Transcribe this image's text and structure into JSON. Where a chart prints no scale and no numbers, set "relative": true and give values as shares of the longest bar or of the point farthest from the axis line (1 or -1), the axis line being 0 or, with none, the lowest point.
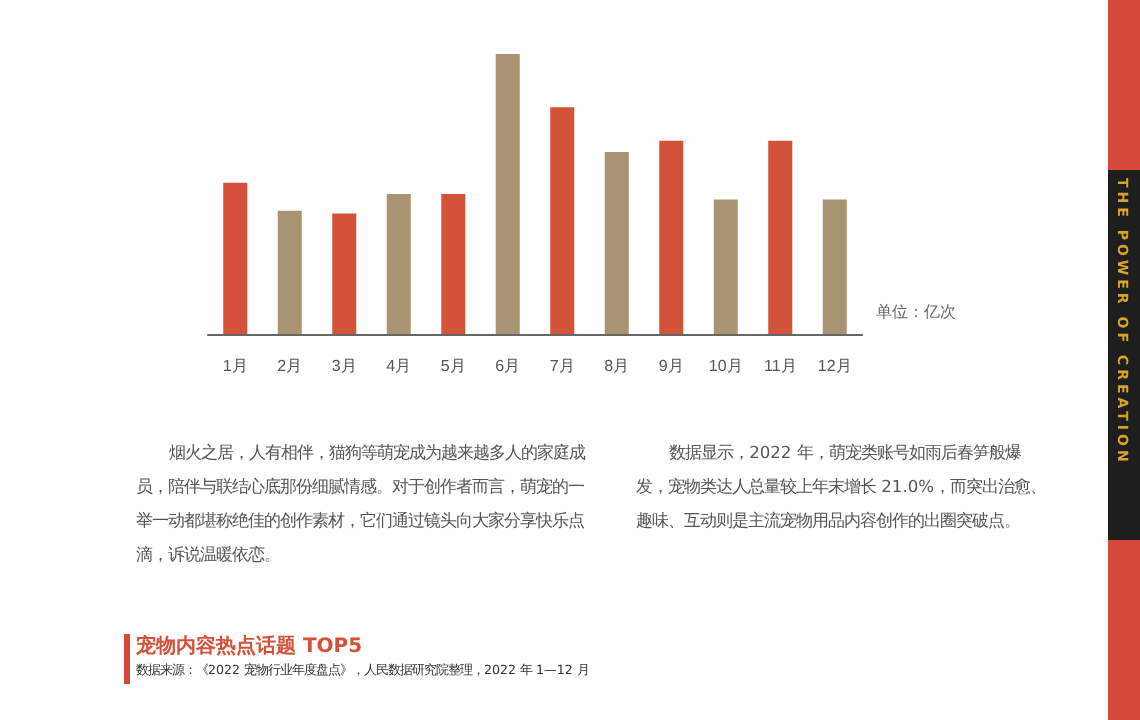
{
  "chart_data": {
    "type": "bar",
    "relative": true,
    "ylabel": "单位：亿次",
    "categories": [
      "1月",
      "2月",
      "3月",
      "4月",
      "5月",
      "6月",
      "7月",
      "8月",
      "9月",
      "10月",
      "11月",
      "12月"
    ],
    "values": [
      0.54,
      0.44,
      0.43,
      0.5,
      0.5,
      1,
      0.81,
      0.65,
      0.69,
      0.48,
      0.69,
      0.48
    ],
    "colors": [
      "#d4523a",
      "#a89373",
      "#d4523a",
      "#a89373",
      "#d4523a",
      "#a89373",
      "#d4523a",
      "#a89373",
      "#d4523a",
      "#a89373",
      "#d4523a",
      "#a89373"
    ],
    "grid": false,
    "annotations": [
      "烟火之居，人有相伴，猫狗等萌宠成为越来越多人的家庭成员，陪伴与联结心底那份细腻情感。对于创作者而言，萌宠的一举一动都堪称绝佳的创作素材，它们通过镜头向大家分享快乐点滴，诉说温暖依恋。",
      "数据显示，2022 年，萌宠类账号如雨后春笋般爆发，宠物类达人总量较上年末增长 21.0%，而突出治愈、趣味、互动则是主流宠物用品内容创作的出圈突破点。",
      "宠物内容热点话题 TOP5",
      "数据来源：《2022 宠物行业年度盘点》，人民数据研究院整理，2022 年 1—12 月",
      "THE POWER OF CREATION"
    ]
  }
}
